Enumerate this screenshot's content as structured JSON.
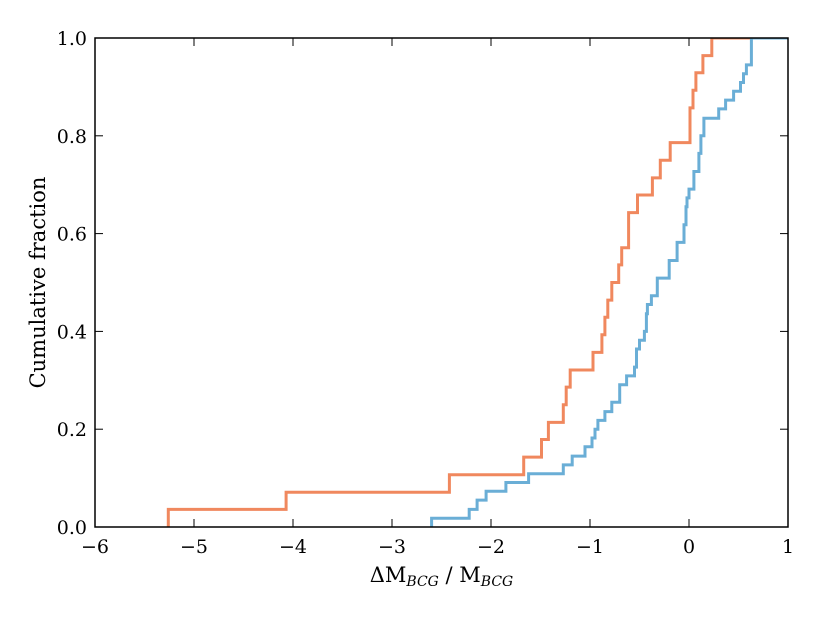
{
  "chart_data": {
    "type": "line",
    "subtype": "step-cdf",
    "title": "",
    "xlabel": "ΔM_BCG / M_BCG",
    "ylabel": "Cumulative fraction",
    "xlim": [
      -6,
      1
    ],
    "ylim": [
      0.0,
      1.0
    ],
    "xticks": [
      -6,
      -5,
      -4,
      -3,
      -2,
      -1,
      0,
      1
    ],
    "xtick_labels": [
      "−6",
      "−5",
      "−4",
      "−3",
      "−2",
      "−1",
      "0",
      "1"
    ],
    "yticks": [
      0.0,
      0.2,
      0.4,
      0.6,
      0.8,
      1.0
    ],
    "ytick_labels": [
      "0.0",
      "0.2",
      "0.4",
      "0.6",
      "0.8",
      "1.0"
    ],
    "grid": false,
    "series": [
      {
        "color": "#f0885e",
        "x": [
          -5.26,
          -4.07,
          -2.42,
          -1.67,
          -1.49,
          -1.42,
          -1.27,
          -1.24,
          -1.2,
          -0.97,
          -0.88,
          -0.85,
          -0.82,
          -0.78,
          -0.71,
          -0.68,
          -0.61,
          -0.52,
          -0.37,
          -0.29,
          -0.19,
          0.01,
          0.04,
          0.07,
          0.14,
          0.23,
          0.65
        ],
        "y": [
          0.036,
          0.071,
          0.107,
          0.143,
          0.179,
          0.214,
          0.25,
          0.286,
          0.321,
          0.357,
          0.393,
          0.429,
          0.464,
          0.5,
          0.536,
          0.571,
          0.643,
          0.679,
          0.714,
          0.75,
          0.786,
          0.857,
          0.893,
          0.929,
          0.964,
          1.0,
          1.0
        ]
      },
      {
        "color": "#6aaed6",
        "x": [
          -2.6,
          -2.22,
          -2.14,
          -2.05,
          -1.85,
          -1.62,
          -1.27,
          -1.18,
          -1.05,
          -0.98,
          -0.95,
          -0.92,
          -0.85,
          -0.78,
          -0.7,
          -0.63,
          -0.55,
          -0.53,
          -0.5,
          -0.45,
          -0.43,
          -0.42,
          -0.38,
          -0.32,
          -0.2,
          -0.12,
          -0.05,
          -0.03,
          -0.02,
          0.0,
          0.05,
          0.1,
          0.12,
          0.15,
          0.3,
          0.37,
          0.45,
          0.52,
          0.55,
          0.58,
          0.63,
          1.0
        ],
        "y": [
          0.018,
          0.036,
          0.055,
          0.073,
          0.091,
          0.109,
          0.127,
          0.145,
          0.164,
          0.182,
          0.2,
          0.218,
          0.236,
          0.255,
          0.291,
          0.309,
          0.327,
          0.364,
          0.382,
          0.4,
          0.436,
          0.455,
          0.473,
          0.509,
          0.545,
          0.582,
          0.618,
          0.655,
          0.673,
          0.691,
          0.727,
          0.764,
          0.8,
          0.836,
          0.855,
          0.873,
          0.891,
          0.909,
          0.927,
          0.945,
          1.0,
          1.0
        ]
      }
    ]
  }
}
